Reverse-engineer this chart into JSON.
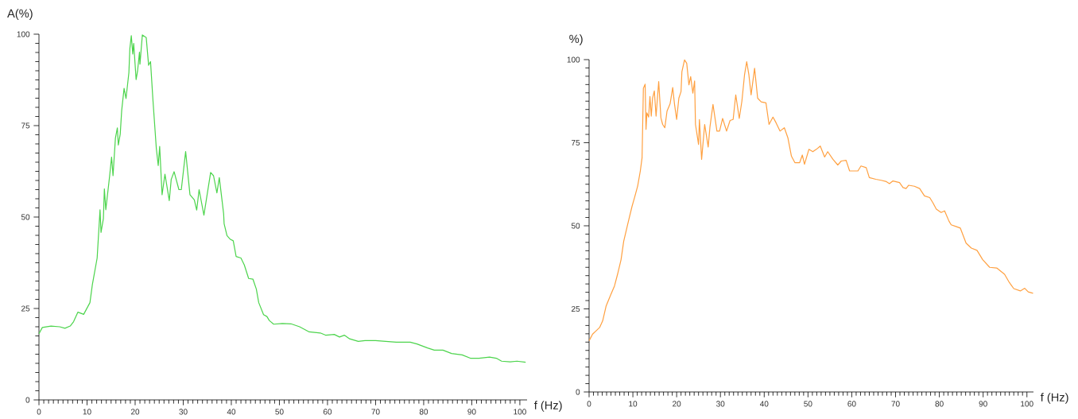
{
  "chart_data": [
    {
      "type": "line",
      "ylabel": "A(%)",
      "xlabel": "f (Hz)",
      "xlim": [
        0,
        101.5
      ],
      "ylim": [
        0,
        100
      ],
      "xticks": [
        0,
        10,
        20,
        30,
        40,
        50,
        60,
        70,
        80,
        90,
        100
      ],
      "yticks": [
        0,
        25,
        50,
        75,
        100
      ],
      "series": [
        {
          "color": "#4cd44c",
          "x": [
            0,
            0.7,
            2.5,
            4.3,
            5.4,
            6.5,
            7.2,
            8.1,
            9.3,
            10.6,
            11.1,
            12.1,
            12.7,
            12.9,
            13.4,
            13.6,
            13.9,
            14.7,
            15.1,
            15.4,
            15.9,
            16.3,
            16.5,
            16.9,
            17.2,
            17.7,
            18.1,
            18.7,
            18.9,
            19.2,
            19.5,
            19.7,
            20.2,
            20.5,
            20.9,
            21,
            21.5,
            22.3,
            22.8,
            23.2,
            23.7,
            24.4,
            24.8,
            25.1,
            25.6,
            26.2,
            27.1,
            27.5,
            28.1,
            29.1,
            29.6,
            30.5,
            31.4,
            32.3,
            32.8,
            33.3,
            34.3,
            34.8,
            35.7,
            36.3,
            37,
            37.5,
            38.4,
            38.5,
            39.1,
            39.8,
            40.4,
            41,
            42,
            42.7,
            43.6,
            44.5,
            45.2,
            45.7,
            46.7,
            47.4,
            47.9,
            48.8,
            50.6,
            52.4,
            54.2,
            56.2,
            58.5,
            59.6,
            61.4,
            62.5,
            63.5,
            64.6,
            66.4,
            67.8,
            70,
            72.1,
            74.3,
            77.2,
            78.6,
            80.8,
            82.2,
            84,
            85.8,
            88,
            89.7,
            91.5,
            93.7,
            95.1,
            96.2,
            98,
            99.4,
            101.2
          ],
          "values": [
            18.1,
            19.8,
            20.2,
            20,
            19.6,
            20.2,
            21.4,
            24,
            23.4,
            26.6,
            31.5,
            38.8,
            52,
            45.8,
            49.6,
            57.7,
            52,
            61.3,
            66.4,
            61.3,
            71.6,
            74.4,
            69.7,
            72.7,
            79.1,
            85.2,
            82.4,
            89.5,
            96,
            99.6,
            94.6,
            97.5,
            87.6,
            89.9,
            95.1,
            91.8,
            99.8,
            99.1,
            91.5,
            92.5,
            82,
            68.8,
            64.1,
            69.3,
            56.1,
            61.7,
            54.5,
            60.3,
            62.4,
            57.5,
            57.5,
            67.9,
            56.1,
            54.7,
            51.9,
            57.5,
            50.5,
            54.7,
            62.2,
            61.3,
            56.6,
            60.8,
            50.9,
            48.2,
            44.9,
            43.9,
            43.5,
            39.2,
            38.8,
            36.9,
            33.2,
            33,
            30.3,
            26.6,
            23.3,
            22.8,
            21.7,
            20.7,
            20.9,
            20.8,
            20,
            18.6,
            18.3,
            17.7,
            17.9,
            17.2,
            17.7,
            16.7,
            16,
            16.2,
            16.2,
            16,
            15.8,
            15.8,
            15.3,
            14.2,
            13.6,
            13.6,
            12.7,
            12.3,
            11.4,
            11.4,
            11.7,
            11.4,
            10.6,
            10.4,
            10.6,
            10.3
          ]
        }
      ]
    },
    {
      "type": "line",
      "ylabel": "%)",
      "xlabel": "f (Hz)",
      "xlim": [
        0,
        101.5
      ],
      "ylim": [
        0,
        100
      ],
      "xticks": [
        0,
        10,
        20,
        30,
        40,
        50,
        60,
        70,
        80,
        90,
        100
      ],
      "yticks": [
        0,
        25,
        50,
        75,
        100
      ],
      "series": [
        {
          "color": "#ffa040",
          "x": [
            0,
            0.8,
            1.6,
            2.4,
            3.1,
            3.9,
            5,
            5.8,
            6.5,
            7.3,
            7.9,
            8.7,
            9.1,
            9.8,
            10.4,
            11.1,
            11.7,
            12.1,
            12.4,
            12.8,
            13,
            13.2,
            13.6,
            13.9,
            14.2,
            14.5,
            14.9,
            15.3,
            15.9,
            16.4,
            16.8,
            17.3,
            17.8,
            18.5,
            19.1,
            19.5,
            20,
            20.5,
            21,
            21.2,
            21.8,
            22.3,
            22.8,
            23.2,
            23.7,
            24.1,
            24.3,
            25,
            25.2,
            25.7,
            26.4,
            27.2,
            27.6,
            28.3,
            29.2,
            29.8,
            30.5,
            31.4,
            32.2,
            32.9,
            33.5,
            34.3,
            34.9,
            35.5,
            36,
            36.5,
            37,
            37.8,
            38.5,
            39.3,
            40.4,
            41.1,
            42,
            42.7,
            43.6,
            44.6,
            45.4,
            46.2,
            47,
            48.1,
            48.7,
            49.2,
            50.2,
            51.1,
            51.9,
            52.8,
            53.8,
            54.5,
            55.7,
            56.8,
            57.6,
            58.7,
            59.5,
            60.6,
            61.4,
            62.1,
            63.3,
            64,
            65.5,
            66.7,
            67.9,
            68.6,
            69.4,
            70.9,
            71.7,
            72.4,
            73,
            74.3,
            75.5,
            76.6,
            77.8,
            78.5,
            79.3,
            80.4,
            81.2,
            82.2,
            82.7,
            83.8,
            84.8,
            86.1,
            87.3,
            88.6,
            89.9,
            91.5,
            93.1,
            94.9,
            96,
            97,
            98.5,
            99.5,
            100.3,
            101.4
          ],
          "values": [
            15.4,
            17.4,
            18.4,
            19.4,
            21.4,
            25.9,
            29.4,
            31.9,
            35.4,
            39.8,
            45.3,
            49.8,
            52,
            55.8,
            58.6,
            62,
            66.5,
            70.5,
            91.4,
            92.6,
            79,
            84,
            82.7,
            88.9,
            83,
            88.4,
            90.6,
            83,
            93.4,
            82.5,
            80.5,
            79.5,
            84.5,
            86.7,
            91.6,
            86.7,
            82,
            88.4,
            90.4,
            96.4,
            99.9,
            98.9,
            92.4,
            94.9,
            89.9,
            93.6,
            80.5,
            74.5,
            82,
            70,
            80.5,
            73.7,
            79.7,
            86.5,
            78.5,
            78.5,
            82.3,
            78.5,
            81.7,
            82,
            89.4,
            82.3,
            87.5,
            95.4,
            99.4,
            95.4,
            89.4,
            97.4,
            88.4,
            87.3,
            87,
            80.5,
            82.7,
            81,
            78.5,
            79.5,
            76.5,
            71,
            69,
            69,
            71.3,
            68.5,
            73,
            72.3,
            73,
            74,
            70.7,
            72.3,
            70,
            68.3,
            69.5,
            69.7,
            66.5,
            66.5,
            66.5,
            68,
            67.5,
            64.5,
            64,
            63.7,
            63.3,
            62.7,
            63.5,
            63,
            61.5,
            61.2,
            62.2,
            61.9,
            61.2,
            59,
            58.5,
            57,
            55,
            54,
            54.5,
            51.4,
            50.3,
            49.8,
            49.3,
            44.8,
            43.3,
            42.6,
            39.8,
            37.5,
            37.3,
            35.4,
            32.9,
            31.1,
            30.4,
            31.2,
            30.1,
            29.7
          ]
        }
      ]
    }
  ]
}
